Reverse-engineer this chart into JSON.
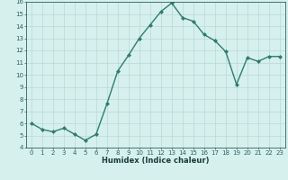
{
  "xlabel": "Humidex (Indice chaleur)",
  "x": [
    0,
    1,
    2,
    3,
    4,
    5,
    6,
    7,
    8,
    9,
    10,
    11,
    12,
    13,
    14,
    15,
    16,
    17,
    18,
    19,
    20,
    21,
    22,
    23
  ],
  "y": [
    6.0,
    5.5,
    5.3,
    5.6,
    5.1,
    4.6,
    5.1,
    7.6,
    10.3,
    11.6,
    13.0,
    14.1,
    15.2,
    15.9,
    14.7,
    14.4,
    13.3,
    12.8,
    11.9,
    9.2,
    11.4,
    11.1,
    11.5,
    11.5
  ],
  "line_color": "#2e7d6e",
  "marker": "D",
  "marker_size": 2.0,
  "line_width": 1.0,
  "bg_color": "#d6f0ee",
  "grid_color": "#b8d8d4",
  "tick_color": "#2e6060",
  "label_color": "#1a3d38",
  "ylim": [
    4,
    16
  ],
  "xlim": [
    -0.5,
    23.5
  ],
  "yticks": [
    4,
    5,
    6,
    7,
    8,
    9,
    10,
    11,
    12,
    13,
    14,
    15,
    16
  ],
  "xticks": [
    0,
    1,
    2,
    3,
    4,
    5,
    6,
    7,
    8,
    9,
    10,
    11,
    12,
    13,
    14,
    15,
    16,
    17,
    18,
    19,
    20,
    21,
    22,
    23
  ],
  "tick_fontsize": 5.0,
  "xlabel_fontsize": 6.0
}
